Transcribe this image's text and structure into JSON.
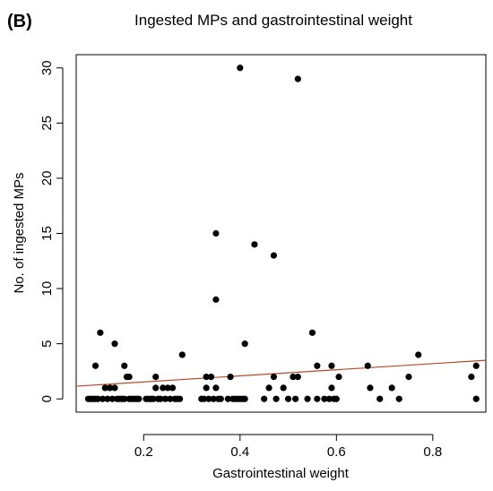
{
  "panel_label": "(B)",
  "chart_data": {
    "type": "scatter",
    "title": "Ingested MPs and gastrointestinal weight",
    "xlabel": "Gastrointestinal weight",
    "ylabel": "No. of ingested MPs",
    "xlim": [
      0.06,
      0.91
    ],
    "ylim": [
      -1.2,
      31.2
    ],
    "xticks": [
      0.2,
      0.4,
      0.6,
      0.8
    ],
    "xtick_labels": [
      "0.2",
      "0.4",
      "0.6",
      "0.8"
    ],
    "yticks": [
      0,
      5,
      10,
      15,
      20,
      25,
      30
    ],
    "ytick_labels": [
      "0",
      "5",
      "10",
      "15",
      "20",
      "25",
      "30"
    ],
    "grid": false,
    "legend": "none",
    "point_color": "#000000",
    "trend_color": "#b5482a",
    "points": [
      {
        "x": 0.085,
        "y": 0
      },
      {
        "x": 0.09,
        "y": 0
      },
      {
        "x": 0.095,
        "y": 0
      },
      {
        "x": 0.1,
        "y": 0
      },
      {
        "x": 0.1,
        "y": 3
      },
      {
        "x": 0.105,
        "y": 0
      },
      {
        "x": 0.11,
        "y": 6
      },
      {
        "x": 0.115,
        "y": 0
      },
      {
        "x": 0.12,
        "y": 1
      },
      {
        "x": 0.125,
        "y": 0
      },
      {
        "x": 0.13,
        "y": 1
      },
      {
        "x": 0.135,
        "y": 0
      },
      {
        "x": 0.14,
        "y": 5
      },
      {
        "x": 0.14,
        "y": 1
      },
      {
        "x": 0.145,
        "y": 0
      },
      {
        "x": 0.15,
        "y": 0
      },
      {
        "x": 0.155,
        "y": 0
      },
      {
        "x": 0.16,
        "y": 3
      },
      {
        "x": 0.16,
        "y": 0
      },
      {
        "x": 0.165,
        "y": 2
      },
      {
        "x": 0.17,
        "y": 2
      },
      {
        "x": 0.17,
        "y": 0
      },
      {
        "x": 0.175,
        "y": 0
      },
      {
        "x": 0.18,
        "y": 0
      },
      {
        "x": 0.185,
        "y": 0
      },
      {
        "x": 0.19,
        "y": 0
      },
      {
        "x": 0.205,
        "y": 0
      },
      {
        "x": 0.21,
        "y": 0
      },
      {
        "x": 0.215,
        "y": 0
      },
      {
        "x": 0.22,
        "y": 0
      },
      {
        "x": 0.225,
        "y": 1
      },
      {
        "x": 0.225,
        "y": 2
      },
      {
        "x": 0.23,
        "y": 0
      },
      {
        "x": 0.235,
        "y": 0
      },
      {
        "x": 0.24,
        "y": 1
      },
      {
        "x": 0.245,
        "y": 0
      },
      {
        "x": 0.25,
        "y": 1
      },
      {
        "x": 0.255,
        "y": 0
      },
      {
        "x": 0.26,
        "y": 1
      },
      {
        "x": 0.265,
        "y": 0
      },
      {
        "x": 0.27,
        "y": 0
      },
      {
        "x": 0.275,
        "y": 0
      },
      {
        "x": 0.28,
        "y": 4
      },
      {
        "x": 0.32,
        "y": 0
      },
      {
        "x": 0.325,
        "y": 0
      },
      {
        "x": 0.33,
        "y": 2
      },
      {
        "x": 0.33,
        "y": 1
      },
      {
        "x": 0.335,
        "y": 0
      },
      {
        "x": 0.34,
        "y": 2
      },
      {
        "x": 0.345,
        "y": 0
      },
      {
        "x": 0.35,
        "y": 15
      },
      {
        "x": 0.35,
        "y": 9
      },
      {
        "x": 0.35,
        "y": 1
      },
      {
        "x": 0.355,
        "y": 0
      },
      {
        "x": 0.36,
        "y": 0
      },
      {
        "x": 0.375,
        "y": 0
      },
      {
        "x": 0.38,
        "y": 2
      },
      {
        "x": 0.385,
        "y": 0
      },
      {
        "x": 0.39,
        "y": 0
      },
      {
        "x": 0.395,
        "y": 0
      },
      {
        "x": 0.4,
        "y": 30
      },
      {
        "x": 0.4,
        "y": 0
      },
      {
        "x": 0.405,
        "y": 0
      },
      {
        "x": 0.41,
        "y": 5
      },
      {
        "x": 0.41,
        "y": 0
      },
      {
        "x": 0.43,
        "y": 14
      },
      {
        "x": 0.45,
        "y": 0
      },
      {
        "x": 0.46,
        "y": 1
      },
      {
        "x": 0.47,
        "y": 13
      },
      {
        "x": 0.47,
        "y": 2
      },
      {
        "x": 0.475,
        "y": 0
      },
      {
        "x": 0.49,
        "y": 1
      },
      {
        "x": 0.5,
        "y": 0
      },
      {
        "x": 0.51,
        "y": 2
      },
      {
        "x": 0.515,
        "y": 0
      },
      {
        "x": 0.52,
        "y": 29
      },
      {
        "x": 0.52,
        "y": 2
      },
      {
        "x": 0.54,
        "y": 0
      },
      {
        "x": 0.55,
        "y": 6
      },
      {
        "x": 0.56,
        "y": 3
      },
      {
        "x": 0.56,
        "y": 0
      },
      {
        "x": 0.575,
        "y": 0
      },
      {
        "x": 0.585,
        "y": 0
      },
      {
        "x": 0.59,
        "y": 3
      },
      {
        "x": 0.59,
        "y": 1
      },
      {
        "x": 0.595,
        "y": 0
      },
      {
        "x": 0.6,
        "y": 0
      },
      {
        "x": 0.605,
        "y": 2
      },
      {
        "x": 0.665,
        "y": 3
      },
      {
        "x": 0.67,
        "y": 1
      },
      {
        "x": 0.69,
        "y": 0
      },
      {
        "x": 0.715,
        "y": 1
      },
      {
        "x": 0.73,
        "y": 0
      },
      {
        "x": 0.75,
        "y": 2
      },
      {
        "x": 0.77,
        "y": 4
      },
      {
        "x": 0.88,
        "y": 2
      },
      {
        "x": 0.89,
        "y": 3
      },
      {
        "x": 0.89,
        "y": 0
      }
    ],
    "trend_line": {
      "x": [
        0.06,
        0.91
      ],
      "y": [
        1.15,
        3.5
      ]
    }
  }
}
